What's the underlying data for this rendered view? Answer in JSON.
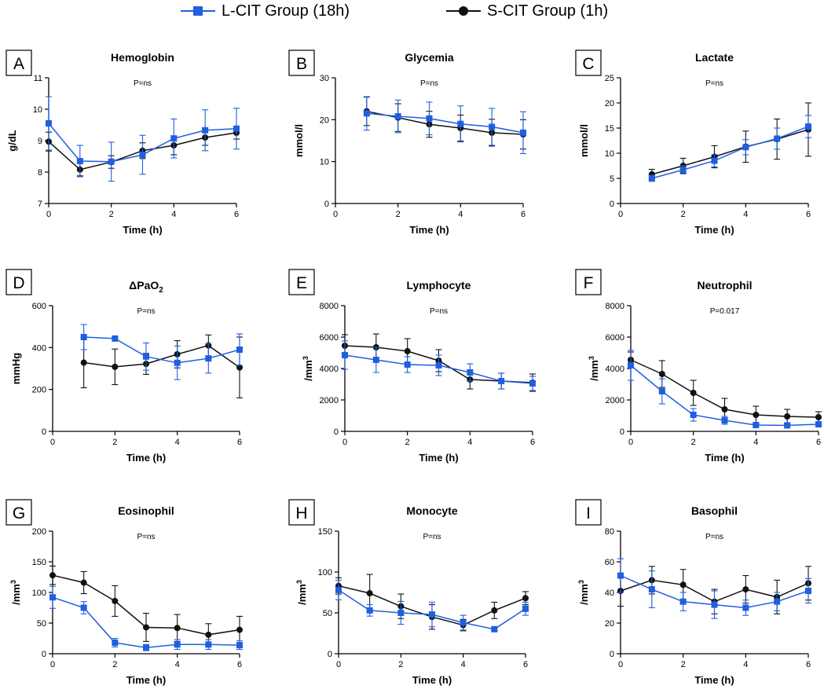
{
  "legend": {
    "long_label": "L-CIT Group (18h)",
    "short_label": "S-CIT Group (1h)"
  },
  "colors": {
    "long": "#1f5fe0",
    "short": "#111111"
  },
  "chart_data": [
    {
      "type": "line",
      "panel": "A",
      "title": "Hemoglobin",
      "pvalue": "P=ns",
      "xlabel": "Time (h)",
      "ylabel": "g/dL",
      "xlim": [
        0,
        6
      ],
      "xticks": [
        0,
        2,
        4,
        6
      ],
      "ylim": [
        7,
        11
      ],
      "yticks": [
        7,
        8,
        9,
        10,
        11
      ],
      "series": [
        {
          "name": "L-CIT Group (18h)",
          "x": [
            0,
            1,
            2,
            3,
            4,
            5,
            6
          ],
          "values": [
            9.55,
            8.35,
            8.33,
            8.55,
            9.07,
            9.33,
            9.38
          ],
          "err": [
            0.85,
            0.5,
            0.62,
            0.62,
            0.62,
            0.65,
            0.65
          ]
        },
        {
          "name": "S-CIT Group (1h)",
          "x": [
            0,
            1,
            2,
            3,
            4,
            5,
            6
          ],
          "values": [
            8.97,
            8.08,
            8.32,
            8.68,
            8.85,
            9.1,
            9.25
          ],
          "err": [
            0.3,
            0.2,
            0.2,
            0.25,
            0.3,
            0.25,
            0.2
          ]
        }
      ]
    },
    {
      "type": "line",
      "panel": "B",
      "title": "Glycemia",
      "pvalue": "P=ns",
      "xlabel": "Time (h)",
      "ylabel": "mmol/l",
      "xlim": [
        0,
        6
      ],
      "xticks": [
        0,
        2,
        4,
        6
      ],
      "ylim": [
        0,
        30
      ],
      "yticks": [
        0,
        10,
        20,
        30
      ],
      "series": [
        {
          "name": "L-CIT Group (18h)",
          "x": [
            1,
            2,
            3,
            4,
            5,
            6
          ],
          "values": [
            21.5,
            20.8,
            20.3,
            19.0,
            18.3,
            16.9
          ],
          "err": [
            4.0,
            3.9,
            3.9,
            4.3,
            4.4,
            5.0
          ]
        },
        {
          "name": "S-CIT Group (1h)",
          "x": [
            1,
            2,
            3,
            4,
            5,
            6
          ],
          "values": [
            22.0,
            20.5,
            18.9,
            18.0,
            16.9,
            16.5
          ],
          "err": [
            3.4,
            3.3,
            3.1,
            3.1,
            3.2,
            3.5
          ]
        }
      ]
    },
    {
      "type": "line",
      "panel": "C",
      "title": "Lactate",
      "pvalue": "P=ns",
      "xlabel": "Time (h)",
      "ylabel": "mmol/l",
      "xlim": [
        0,
        6
      ],
      "xticks": [
        0,
        2,
        4,
        6
      ],
      "ylim": [
        0,
        25
      ],
      "yticks": [
        0,
        5,
        10,
        15,
        20,
        25
      ],
      "series": [
        {
          "name": "L-CIT Group (18h)",
          "x": [
            1,
            2,
            3,
            4,
            5,
            6
          ],
          "values": [
            5.0,
            6.7,
            8.5,
            11.2,
            12.9,
            15.3
          ],
          "err": [
            0.6,
            0.8,
            1.2,
            1.5,
            2.1,
            2.2
          ]
        },
        {
          "name": "S-CIT Group (1h)",
          "x": [
            1,
            2,
            3,
            4,
            5,
            6
          ],
          "values": [
            5.8,
            7.5,
            9.3,
            11.3,
            12.8,
            14.7
          ],
          "err": [
            1.0,
            1.5,
            2.2,
            3.1,
            4.0,
            5.3
          ]
        }
      ]
    },
    {
      "type": "line",
      "panel": "D",
      "title": "ΔPaO",
      "title_sub": "2",
      "pvalue": "P=ns",
      "xlabel": "Time (h)",
      "ylabel": "mmHg",
      "xlim": [
        0,
        6
      ],
      "xticks": [
        0,
        2,
        4,
        6
      ],
      "ylim": [
        0,
        600
      ],
      "yticks": [
        0,
        200,
        400,
        600
      ],
      "series": [
        {
          "name": "L-CIT Group (18h)",
          "x": [
            1,
            2,
            3,
            4,
            5,
            6
          ],
          "values": [
            450,
            443,
            357,
            327,
            348,
            390
          ],
          "err": [
            60,
            0,
            65,
            80,
            70,
            75
          ]
        },
        {
          "name": "S-CIT Group (1h)",
          "x": [
            1,
            2,
            3,
            4,
            5,
            6
          ],
          "values": [
            328,
            308,
            322,
            368,
            410,
            305
          ],
          "err": [
            120,
            85,
            50,
            65,
            50,
            145
          ]
        }
      ]
    },
    {
      "type": "line",
      "panel": "E",
      "title": "Lymphocyte",
      "pvalue": "P=ns",
      "xlabel": "Time (h)",
      "ylabel": "/mm",
      "ylabel_sup": "3",
      "xlim": [
        0,
        6
      ],
      "xticks": [
        0,
        2,
        4,
        6
      ],
      "ylim": [
        0,
        8000
      ],
      "yticks": [
        0,
        2000,
        4000,
        6000,
        8000
      ],
      "series": [
        {
          "name": "L-CIT Group (18h)",
          "x": [
            0,
            1,
            2,
            3,
            4,
            5,
            6
          ],
          "values": [
            4850,
            4550,
            4250,
            4200,
            3750,
            3200,
            3050
          ],
          "err": [
            900,
            800,
            500,
            650,
            550,
            500,
            450
          ]
        },
        {
          "name": "S-CIT Group (1h)",
          "x": [
            0,
            1,
            2,
            3,
            4,
            5,
            6
          ],
          "values": [
            5450,
            5350,
            5100,
            4500,
            3300,
            3200,
            3100
          ],
          "err": [
            700,
            850,
            800,
            700,
            600,
            500,
            550
          ]
        }
      ]
    },
    {
      "type": "line",
      "panel": "F",
      "title": "Neutrophil",
      "pvalue": "P=0.017",
      "xlabel": "Time (h)",
      "ylabel": "/mm",
      "ylabel_sup": "3",
      "xlim": [
        0,
        6
      ],
      "xticks": [
        0,
        2,
        4,
        6
      ],
      "ylim": [
        0,
        8000
      ],
      "yticks": [
        0,
        2000,
        4000,
        6000,
        8000
      ],
      "series": [
        {
          "name": "L-CIT Group (18h)",
          "x": [
            0,
            1,
            2,
            3,
            4,
            5,
            6
          ],
          "values": [
            4200,
            2550,
            1050,
            700,
            400,
            380,
            450
          ],
          "err": [
            950,
            800,
            400,
            250,
            150,
            150,
            150
          ]
        },
        {
          "name": "S-CIT Group (1h)",
          "x": [
            0,
            1,
            2,
            3,
            4,
            5,
            6
          ],
          "values": [
            4550,
            3650,
            2450,
            1400,
            1050,
            950,
            900
          ],
          "err": [
            500,
            850,
            800,
            700,
            550,
            450,
            350
          ]
        }
      ]
    },
    {
      "type": "line",
      "panel": "G",
      "title": "Eosinophil",
      "pvalue": "P=ns",
      "xlabel": "Time (h)",
      "ylabel": "/mm",
      "ylabel_sup": "3",
      "xlim": [
        0,
        6
      ],
      "xticks": [
        0,
        2,
        4,
        6
      ],
      "ylim": [
        0,
        200
      ],
      "yticks": [
        0,
        50,
        100,
        150,
        200
      ],
      "series": [
        {
          "name": "L-CIT Group (18h)",
          "x": [
            0,
            1,
            2,
            3,
            4,
            5,
            6
          ],
          "values": [
            92,
            75,
            18,
            10,
            15,
            15,
            14
          ],
          "err": [
            18,
            10,
            7,
            5,
            8,
            8,
            7
          ]
        },
        {
          "name": "S-CIT Group (1h)",
          "x": [
            0,
            1,
            2,
            3,
            4,
            5,
            6
          ],
          "values": [
            128,
            116,
            86,
            43,
            42,
            31,
            39
          ],
          "err": [
            15,
            18,
            25,
            23,
            22,
            18,
            22
          ]
        }
      ]
    },
    {
      "type": "line",
      "panel": "H",
      "title": "Monocyte",
      "pvalue": "P=ns",
      "xlabel": "Time (h)",
      "ylabel": "/mm",
      "ylabel_sup": "3",
      "xlim": [
        0,
        6
      ],
      "xticks": [
        0,
        2,
        4,
        6
      ],
      "ylim": [
        0,
        150
      ],
      "yticks": [
        0,
        50,
        100,
        150
      ],
      "series": [
        {
          "name": "L-CIT Group (18h)",
          "x": [
            0,
            1,
            2,
            3,
            4,
            5,
            6
          ],
          "values": [
            78,
            53,
            50,
            48,
            38,
            30,
            55
          ],
          "err": [
            12,
            7,
            14,
            15,
            9,
            2,
            8
          ]
        },
        {
          "name": "S-CIT Group (1h)",
          "x": [
            0,
            1,
            2,
            3,
            4,
            5,
            6
          ],
          "values": [
            83,
            74,
            58,
            45,
            35,
            53,
            68
          ],
          "err": [
            10,
            23,
            15,
            15,
            7,
            10,
            8
          ]
        }
      ]
    },
    {
      "type": "line",
      "panel": "I",
      "title": "Basophil",
      "pvalue": "P=ns",
      "xlabel": "Time (h)",
      "ylabel": "/mm",
      "ylabel_sup": "3",
      "xlim": [
        0,
        6
      ],
      "xticks": [
        0,
        2,
        4,
        6
      ],
      "ylim": [
        0,
        80
      ],
      "yticks": [
        0,
        20,
        40,
        60,
        80
      ],
      "series": [
        {
          "name": "L-CIT Group (18h)",
          "x": [
            0,
            1,
            2,
            3,
            4,
            5,
            6
          ],
          "values": [
            51,
            42,
            34,
            32,
            30,
            34,
            41
          ],
          "err": [
            11,
            12,
            6,
            9,
            5,
            6,
            8
          ]
        },
        {
          "name": "S-CIT Group (1h)",
          "x": [
            0,
            1,
            2,
            3,
            4,
            5,
            6
          ],
          "values": [
            41,
            48,
            45,
            34,
            42,
            37,
            46
          ],
          "err": [
            10,
            9,
            10,
            8,
            9,
            11,
            11
          ]
        }
      ]
    }
  ]
}
